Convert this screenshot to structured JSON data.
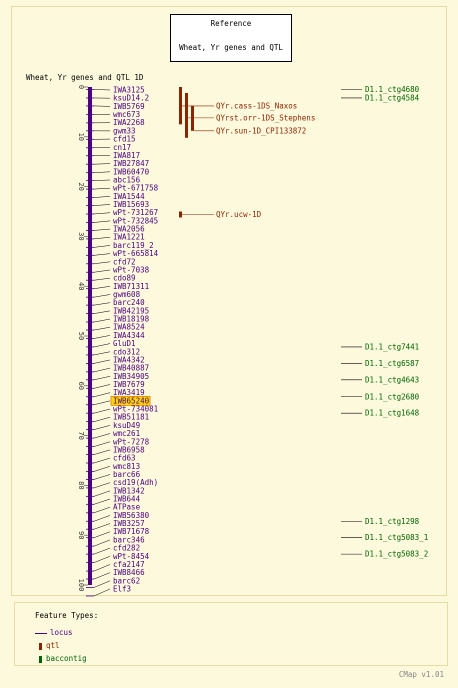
{
  "reference": {
    "title": "Reference",
    "subtitle": "Wheat, Yr genes and QTL"
  },
  "map": {
    "title": "Wheat, Yr genes and QTL 1D",
    "scale_ticks": [
      "0",
      "10",
      "20",
      "30",
      "40",
      "50",
      "60",
      "70",
      "80",
      "90",
      "100"
    ],
    "highlighted_locus": "IWB65240",
    "loci": [
      {
        "name": "IWA3125",
        "pos": 0.5
      },
      {
        "name": "ksuD14.2",
        "pos": 2.2
      },
      {
        "name": "IWB5769",
        "pos": 3.8
      },
      {
        "name": "wmc673",
        "pos": 5.5
      },
      {
        "name": "IWA2268",
        "pos": 7.2
      },
      {
        "name": "gwm33",
        "pos": 8.8
      },
      {
        "name": "cfd15",
        "pos": 10.5
      },
      {
        "name": "cn17",
        "pos": 12.2
      },
      {
        "name": "IWA817",
        "pos": 13.8
      },
      {
        "name": "IWB27847",
        "pos": 15.5
      },
      {
        "name": "IWB60470",
        "pos": 17.2
      },
      {
        "name": "abc156",
        "pos": 18.8
      },
      {
        "name": "wPt-671758",
        "pos": 20.5
      },
      {
        "name": "IWA1544",
        "pos": 22.2
      },
      {
        "name": "IWB15693",
        "pos": 23.8
      },
      {
        "name": "wPt-731267",
        "pos": 25.5
      },
      {
        "name": "wPt-732845",
        "pos": 27.2
      },
      {
        "name": "IWA2056",
        "pos": 28.8
      },
      {
        "name": "IWA1221",
        "pos": 30.5
      },
      {
        "name": "barc119_2",
        "pos": 32.2
      },
      {
        "name": "wPt-665814",
        "pos": 33.8
      },
      {
        "name": "cfd72",
        "pos": 35.5
      },
      {
        "name": "wPt-7038",
        "pos": 37.2
      },
      {
        "name": "cdo89",
        "pos": 38.8
      },
      {
        "name": "IWB71311",
        "pos": 40.5
      },
      {
        "name": "gwm608",
        "pos": 42.2
      },
      {
        "name": "barc240",
        "pos": 43.8
      },
      {
        "name": "IWB42195",
        "pos": 45.5
      },
      {
        "name": "IWB18198",
        "pos": 47.2
      },
      {
        "name": "IWA8524",
        "pos": 48.8
      },
      {
        "name": "IWA4344",
        "pos": 50.5
      },
      {
        "name": "GluD1",
        "pos": 52.2
      },
      {
        "name": "cdo312",
        "pos": 53.8
      },
      {
        "name": "IWA4342",
        "pos": 55.5
      },
      {
        "name": "IWB40887",
        "pos": 57.2
      },
      {
        "name": "IWB34905",
        "pos": 58.8
      },
      {
        "name": "IWB7679",
        "pos": 60.5
      },
      {
        "name": "IWA3419",
        "pos": 62.2
      },
      {
        "name": "IWB65240",
        "pos": 63.8
      },
      {
        "name": "wPt-734081",
        "pos": 65.5
      },
      {
        "name": "IWB51181",
        "pos": 67.2
      },
      {
        "name": "ksuD49",
        "pos": 68.8
      },
      {
        "name": "wmc261",
        "pos": 70.5
      },
      {
        "name": "wPt-7278",
        "pos": 72.2
      },
      {
        "name": "IWB6958",
        "pos": 73.8
      },
      {
        "name": "cfd63",
        "pos": 75.5
      },
      {
        "name": "wmc813",
        "pos": 77.2
      },
      {
        "name": "barc66",
        "pos": 78.8
      },
      {
        "name": "csd19(Adh)",
        "pos": 80.5
      },
      {
        "name": "IWB1342",
        "pos": 82.2
      },
      {
        "name": "IWB644",
        "pos": 83.8
      },
      {
        "name": "ATPase",
        "pos": 85.5
      },
      {
        "name": "IWB56380",
        "pos": 87.2
      },
      {
        "name": "IWB3257",
        "pos": 88.8
      },
      {
        "name": "IWB71678",
        "pos": 90.5
      },
      {
        "name": "barc346",
        "pos": 92.2
      },
      {
        "name": "cfd282",
        "pos": 93.8
      },
      {
        "name": "wPt-8454",
        "pos": 95.5
      },
      {
        "name": "cfa2147",
        "pos": 97.2
      },
      {
        "name": "IWB8466",
        "pos": 98.8
      },
      {
        "name": "barc62",
        "pos": 100.5
      },
      {
        "name": "Elf3",
        "pos": 102.2
      }
    ],
    "qtl": [
      {
        "name": "QYr.cass-1DS_Naxos",
        "start": 0,
        "end": 7.5,
        "label_pos": 3.8
      },
      {
        "name": "QYrst.orr-1DS_Stephens",
        "start": 1.2,
        "end": 10.2,
        "label_pos": 6.2
      },
      {
        "name": "QYr.sun-1D_CPI133872",
        "start": 3.8,
        "end": 8.8,
        "label_pos": 8.8
      },
      {
        "name": "QYr.ucw-1D",
        "start": 25.0,
        "end": 26.2,
        "label_pos": 25.6
      }
    ],
    "contigs": [
      {
        "name": "D1.1_ctg4680",
        "pos": 0.5
      },
      {
        "name": "D1.1_ctg4584",
        "pos": 2.2
      },
      {
        "name": "D1.1_ctg7441",
        "pos": 52.2
      },
      {
        "name": "D1.1_ctg6587",
        "pos": 55.5
      },
      {
        "name": "D1.1_ctg4643",
        "pos": 58.8
      },
      {
        "name": "D1.1_ctg2680",
        "pos": 62.2
      },
      {
        "name": "D1.1_ctg1648",
        "pos": 65.5
      },
      {
        "name": "D1.1_ctg1298",
        "pos": 87.2
      },
      {
        "name": "D1.1_ctg5083_1",
        "pos": 90.5
      },
      {
        "name": "D1.1_ctg5083_2",
        "pos": 93.8
      }
    ]
  },
  "legend": {
    "title": "Feature Types:",
    "items": [
      {
        "label": "locus",
        "color": "#4b0082"
      },
      {
        "label": "qtl",
        "color": "#8b2500"
      },
      {
        "label": "baccontig",
        "color": "#006400"
      }
    ]
  },
  "footer": "CMap v1.01",
  "colors": {
    "locus": "#4b0082",
    "qtl": "#8b2500",
    "contig": "#006400",
    "highlight": "#ffd700",
    "highlight_border": "#e08000"
  }
}
